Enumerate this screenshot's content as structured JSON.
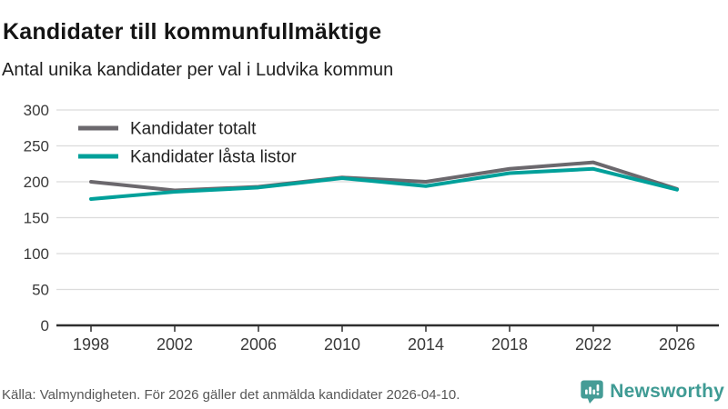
{
  "chart_data": {
    "type": "line",
    "title": "Kandidater till kommunfullmäktige",
    "subtitle": "Antal unika kandidater per val i Ludvika kommun",
    "x": [
      1998,
      2002,
      2006,
      2010,
      2014,
      2018,
      2022,
      2026
    ],
    "series": [
      {
        "name": "Kandidater totalt",
        "color": "#6b686d",
        "values": [
          200,
          188,
          193,
          206,
          200,
          218,
          227,
          190
        ]
      },
      {
        "name": "Kandidater låsta listor",
        "color": "#00a09a",
        "values": [
          176,
          186,
          192,
          205,
          194,
          212,
          218,
          189
        ]
      }
    ],
    "xlabel": "",
    "ylabel": "",
    "ylim": [
      0,
      300
    ],
    "ytick_step": 50,
    "yticks": [
      0,
      50,
      100,
      150,
      200,
      250,
      300
    ],
    "grid": "horizontal",
    "legend_position": "top-left",
    "colors": {
      "grid_line": "#dcdcdc",
      "axis_line": "#2e2e2e",
      "tick_label": "#3a3a3a",
      "legend_label": "#222222"
    }
  },
  "footer": {
    "source": "Källa: Valmyndigheten. För 2026 gäller det anmälda kandidater 2026-04-10.",
    "logo_text": "Newsworthy",
    "logo_color": "#3f9b94",
    "logo_icon_color": "#459c96"
  }
}
